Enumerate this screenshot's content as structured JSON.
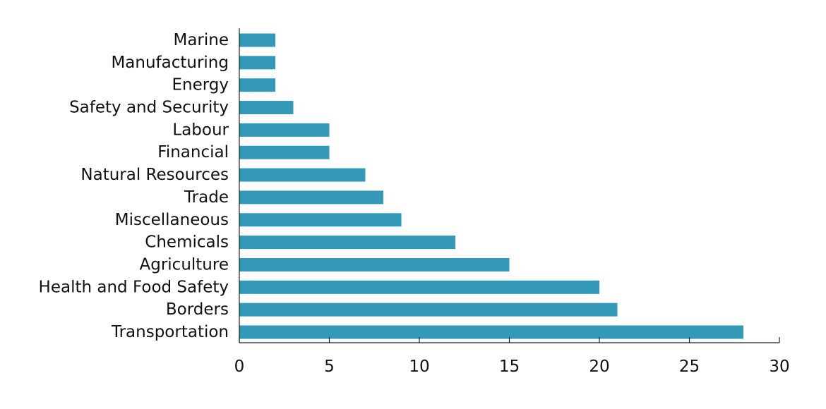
{
  "chart_data": {
    "type": "bar",
    "orientation": "horizontal",
    "title": "",
    "xlabel": "",
    "ylabel": "",
    "categories": [
      "Marine",
      "Manufacturing",
      "Energy",
      "Safety and Security",
      "Labour",
      "Financial",
      "Natural Resources",
      "Trade",
      "Miscellaneous",
      "Chemicals",
      "Agriculture",
      "Health and Food Safety",
      "Borders",
      "Transportation"
    ],
    "values": [
      2,
      2,
      2,
      3,
      5,
      5,
      7,
      8,
      9,
      12,
      15,
      20,
      21,
      28
    ],
    "xlim": [
      0,
      30
    ],
    "xticks": [
      "0",
      "5",
      "10",
      "15",
      "20",
      "25",
      "30"
    ],
    "bar_color": "#3399b8",
    "grid": false,
    "legend": "none"
  }
}
